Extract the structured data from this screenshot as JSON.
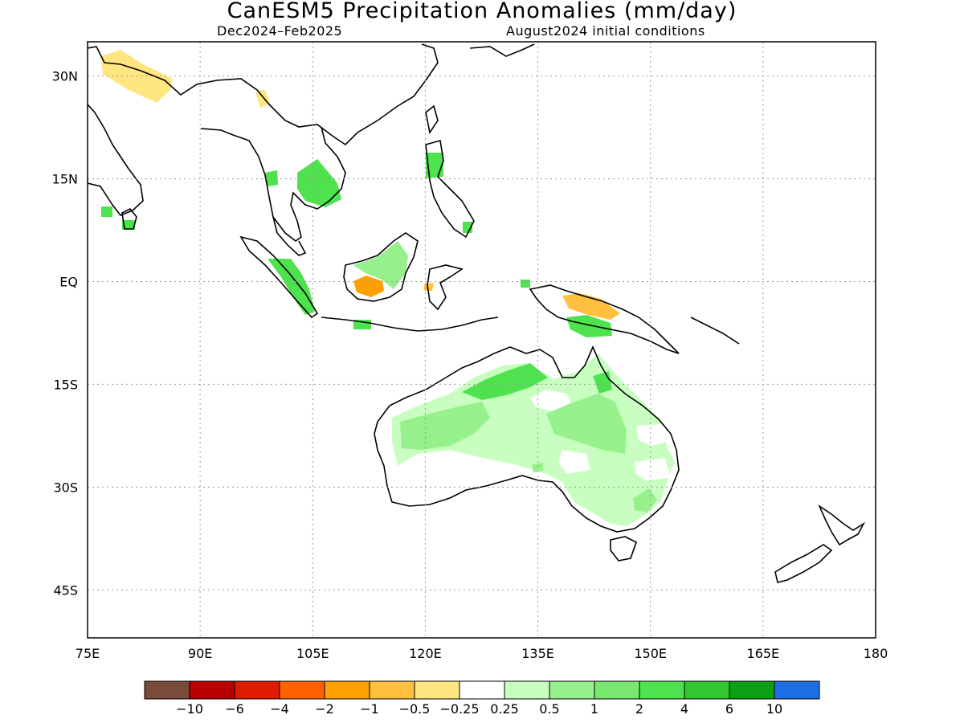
{
  "header": {
    "title": "CanESM5 Precipitation Anomalies (mm/day)",
    "period": "Dec2024–Feb2025",
    "init": "August2024 initial conditions"
  },
  "map": {
    "lon_range": [
      75,
      180
    ],
    "lat_range": [
      -52,
      35
    ],
    "grid": "dotted",
    "lon_ticks": [
      {
        "lon": 75,
        "label": "75E"
      },
      {
        "lon": 90,
        "label": "90E"
      },
      {
        "lon": 105,
        "label": "105E"
      },
      {
        "lon": 120,
        "label": "120E"
      },
      {
        "lon": 135,
        "label": "135E"
      },
      {
        "lon": 150,
        "label": "150E"
      },
      {
        "lon": 165,
        "label": "165E"
      },
      {
        "lon": 180,
        "label": "180"
      }
    ],
    "lat_ticks": [
      {
        "lat": 30,
        "label": "30N"
      },
      {
        "lat": 15,
        "label": "15N"
      },
      {
        "lat": 0,
        "label": "EQ"
      },
      {
        "lat": -15,
        "label": "15S"
      },
      {
        "lat": -30,
        "label": "30S"
      },
      {
        "lat": -45,
        "label": "45S"
      }
    ]
  },
  "colorbar": {
    "colors": [
      "#7a4a3a",
      "#b80000",
      "#e01c00",
      "#ff6000",
      "#ffa000",
      "#ffc040",
      "#ffe680",
      "#ffffff",
      "#c8ffc0",
      "#96f08c",
      "#78e870",
      "#4ee24e",
      "#32c832",
      "#0ea014",
      "#1e6ee6"
    ],
    "labels": [
      "−10",
      "−6",
      "−4",
      "−2",
      "−1",
      "−0.5",
      "−0.25",
      "0.25",
      "0.5",
      "1",
      "2",
      "4",
      "6",
      "10"
    ]
  },
  "anomaly_regions": [
    {
      "name": "himalaya-dry",
      "color": "#ffe680"
    },
    {
      "name": "borneo-dry",
      "color": "#ffa000"
    },
    {
      "name": "new-guinea-dry",
      "color": "#ffc040"
    },
    {
      "name": "north-australia-wet",
      "color": "#4ee24e"
    },
    {
      "name": "central-australia-wet",
      "color": "#96f08c"
    },
    {
      "name": "east-australia-wet",
      "color": "#c8ffc0"
    }
  ]
}
